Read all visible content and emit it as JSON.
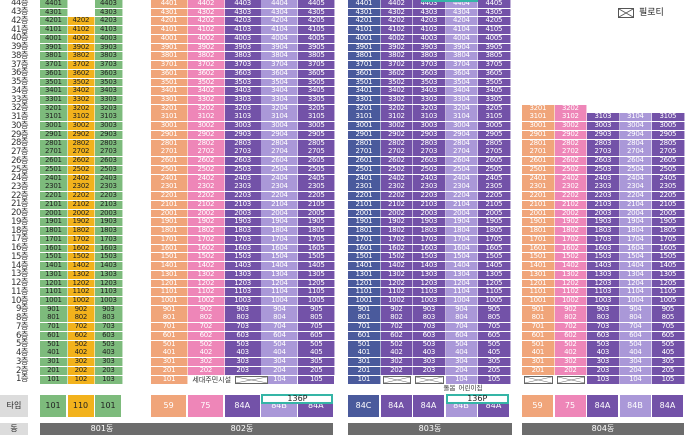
{
  "legend": {
    "label": "필로티",
    "icon": "pilotis-x-box-icon"
  },
  "floor_labels": [
    "46층",
    "45층",
    "44층",
    "43층",
    "42층",
    "41층",
    "40층",
    "39층",
    "38층",
    "37층",
    "36층",
    "35층",
    "34층",
    "33층",
    "32층",
    "31층",
    "30층",
    "29층",
    "28층",
    "27층",
    "26층",
    "25층",
    "24층",
    "23층",
    "22층",
    "21층",
    "20층",
    "19층",
    "18층",
    "17층",
    "16층",
    "15층",
    "14층",
    "13층",
    "12층",
    "11층",
    "10층",
    "9층",
    "8층",
    "7층",
    "6층",
    "5층",
    "4층",
    "3층",
    "2층",
    "1층"
  ],
  "colors": {
    "101": "#7dbb7c",
    "110": "#f2b21c",
    "59": "#f0a57a",
    "75": "#ee86b8",
    "84A": "#7352a8",
    "84B": "#aa98d8",
    "84C": "#4a5a9c",
    "136P": "#a693d4"
  },
  "row_label": "타입",
  "dong_row_label": "동",
  "buildings": [
    {
      "id": "b801",
      "dong": "801동",
      "top_floor": 46,
      "lines": [
        {
          "type": "101",
          "suffix": "01",
          "min_floor": 1,
          "max_floor": 46
        },
        {
          "type": "110",
          "suffix": "02",
          "min_floor": 1,
          "max_floor": 42
        },
        {
          "type": "101",
          "suffix": "03",
          "min_floor": 1,
          "max_floor": 46
        }
      ],
      "types": [
        "101",
        "110",
        "101"
      ]
    },
    {
      "id": "b802",
      "dong": "802동",
      "top_floor": 46,
      "lines": [
        {
          "type": "59",
          "suffix": "01",
          "min_floor": 1,
          "max_floor": 45
        },
        {
          "type": "75",
          "suffix": "02",
          "min_floor": 1,
          "max_floor": 45
        },
        {
          "type": "84A",
          "suffix": "03",
          "min_floor": 1,
          "max_floor": 45
        },
        {
          "type": "84B",
          "suffix": "04",
          "min_floor": 2,
          "max_floor": 45,
          "penthouse": "4604"
        },
        {
          "type": "84A",
          "suffix": "05",
          "min_floor": 2,
          "max_floor": 45
        }
      ],
      "pilotis_note": "세대주민시설",
      "types": [
        "59",
        "75",
        "84A",
        "84B",
        "84A"
      ],
      "penthouse_type": "136P"
    },
    {
      "id": "b803",
      "dong": "803동",
      "top_floor": 45,
      "lines": [
        {
          "type": "84C",
          "suffix": "01",
          "min_floor": 1,
          "max_floor": 45
        },
        {
          "type": "84A",
          "suffix": "02",
          "min_floor": 2,
          "max_floor": 44
        },
        {
          "type": "84A",
          "suffix": "03",
          "min_floor": 2,
          "max_floor": 44
        },
        {
          "type": "84B",
          "suffix": "04",
          "min_floor": 1,
          "max_floor": 44,
          "penthouse": "4504"
        },
        {
          "type": "84A",
          "suffix": "05",
          "min_floor": 1,
          "max_floor": 44
        }
      ],
      "pilotis_notes": [
        "돌봄센터",
        "어린이집"
      ],
      "types": [
        "84C",
        "84A",
        "84A",
        "84B",
        "84A"
      ],
      "penthouse_type": "136P"
    },
    {
      "id": "b804",
      "dong": "804동",
      "top_floor": 32,
      "lines": [
        {
          "type": "59",
          "suffix": "01",
          "min_floor": 2,
          "max_floor": 32
        },
        {
          "type": "75",
          "suffix": "02",
          "min_floor": 2,
          "max_floor": 32
        },
        {
          "type": "84A",
          "suffix": "03",
          "min_floor": 1,
          "max_floor": 31
        },
        {
          "type": "84B",
          "suffix": "04",
          "min_floor": 1,
          "max_floor": 31
        },
        {
          "type": "84A",
          "suffix": "05",
          "min_floor": 1,
          "max_floor": 31
        }
      ],
      "types": [
        "59",
        "75",
        "84A",
        "84B",
        "84A"
      ]
    }
  ]
}
